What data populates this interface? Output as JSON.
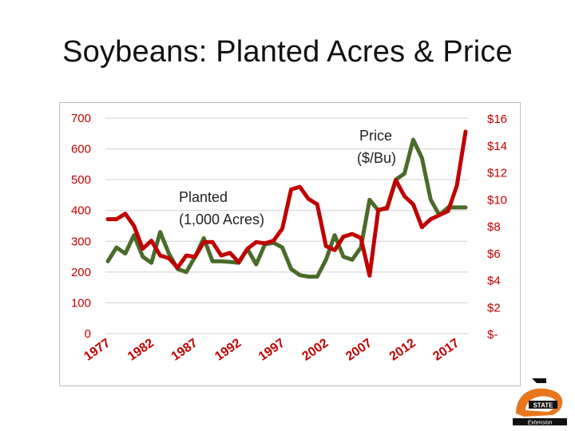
{
  "slide": {
    "title": "Soybeans: Planted Acres & Price"
  },
  "annotations": {
    "price_line1": "Price",
    "price_line2": "($/Bu)",
    "planted_line1": "Planted",
    "planted_line2": "(1,000 Acres)"
  },
  "logo": {
    "text_state": "STATE",
    "text_ext": "Extension",
    "icon": "osu-extension-logo"
  },
  "chart_data": {
    "type": "line",
    "title": "Soybeans: Planted Acres & Price",
    "x_tick_labels": [
      "1977",
      "1982",
      "1987",
      "1992",
      "1997",
      "2002",
      "2007",
      "2012",
      "2017"
    ],
    "left_axis": {
      "label": "Planted (1,000 Acres)",
      "range": [
        0,
        700
      ],
      "tick_labels": [
        "0",
        "100",
        "200",
        "300",
        "400",
        "500",
        "600",
        "700"
      ]
    },
    "right_axis": {
      "label": "Price ($/Bu)",
      "range": [
        0,
        16
      ],
      "tick_labels": [
        "$-",
        "$2",
        "$4",
        "$6",
        "$8",
        "$10",
        "$12",
        "$14",
        "$16"
      ]
    },
    "grid": {
      "horizontal": true
    },
    "x": [
      1977,
      1978,
      1979,
      1980,
      1981,
      1982,
      1983,
      1984,
      1985,
      1986,
      1987,
      1988,
      1989,
      1990,
      1991,
      1992,
      1993,
      1994,
      1995,
      1996,
      1997,
      1998,
      1999,
      2000,
      2001,
      2002,
      2003,
      2004,
      2005,
      2006,
      2007,
      2008,
      2009,
      2010,
      2011,
      2012,
      2013,
      2014,
      2015,
      2016,
      2017,
      2018
    ],
    "series": [
      {
        "name": "Planted (1,000 Acres)",
        "axis": "left",
        "color": "#4a6b2a",
        "values": [
          235,
          280,
          260,
          320,
          250,
          230,
          330,
          260,
          210,
          200,
          250,
          310,
          235,
          235,
          233,
          230,
          275,
          225,
          290,
          295,
          280,
          210,
          190,
          185,
          185,
          240,
          320,
          250,
          240,
          280,
          435,
          400,
          410,
          500,
          520,
          630,
          570,
          435,
          385,
          410,
          410,
          410
        ]
      },
      {
        "name": "Price ($/Bu)",
        "axis": "right",
        "color": "#c00000",
        "values": [
          8.5,
          8.5,
          8.9,
          8.0,
          6.3,
          6.9,
          5.8,
          5.6,
          4.9,
          5.8,
          5.7,
          6.8,
          6.8,
          5.8,
          6.0,
          5.3,
          6.3,
          6.8,
          6.7,
          6.9,
          7.8,
          10.7,
          10.9,
          10.0,
          9.6,
          6.5,
          6.2,
          7.2,
          7.4,
          7.1,
          4.3,
          9.2,
          9.3,
          11.4,
          10.2,
          9.6,
          7.9,
          8.5,
          8.8,
          9.1,
          11.0,
          15.0
        ]
      }
    ]
  }
}
